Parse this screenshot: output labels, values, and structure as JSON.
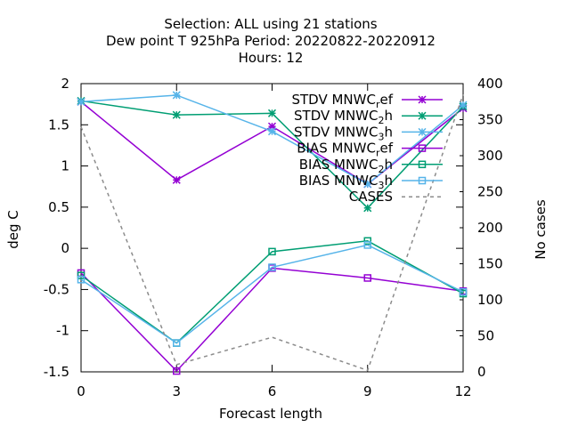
{
  "chart_data": {
    "type": "line",
    "title": [
      "Selection: ALL using    21 stations",
      "Dew point T 925hPa   Period: 20220822-20220912",
      "Hours:  12"
    ],
    "xlabel": "Forecast length",
    "ylabel": "deg C",
    "y2label": "No cases",
    "x": [
      0,
      3,
      6,
      9,
      12
    ],
    "xticks": [
      "0",
      "3",
      "6",
      "9",
      "12"
    ],
    "xlim": [
      0,
      12
    ],
    "ylim": [
      -1.5,
      2
    ],
    "yticks": [
      "-1.5",
      "-1",
      "-0.5",
      "0",
      "0.5",
      "1",
      "1.5",
      "2"
    ],
    "y2lim": [
      0,
      400
    ],
    "y2ticks": [
      "0",
      "50",
      "100",
      "150",
      "200",
      "250",
      "300",
      "350",
      "400"
    ],
    "grid": false,
    "legend_position": "top-right",
    "series": [
      {
        "name": "STDV MNWC",
        "sub": "r",
        "tail": "ef",
        "color": "#9400d3",
        "marker": "star",
        "dash": "none",
        "axis": "y1",
        "values": [
          1.78,
          0.83,
          1.48,
          0.78,
          1.7
        ]
      },
      {
        "name": "STDV MNWC",
        "sub": "2",
        "tail": "h",
        "color": "#009e73",
        "marker": "star",
        "dash": "none",
        "axis": "y1",
        "values": [
          1.79,
          1.62,
          1.64,
          0.49,
          1.72
        ]
      },
      {
        "name": "STDV MNWC",
        "sub": "3",
        "tail": "h",
        "color": "#56b4e9",
        "marker": "star",
        "dash": "none",
        "axis": "y1",
        "values": [
          1.78,
          1.86,
          1.42,
          0.78,
          1.74
        ]
      },
      {
        "name": "BIAS MNWC",
        "sub": "r",
        "tail": "ef",
        "color": "#9400d3",
        "marker": "square",
        "dash": "none",
        "axis": "y1",
        "values": [
          -0.3,
          -1.49,
          -0.24,
          -0.36,
          -0.52
        ]
      },
      {
        "name": "BIAS MNWC",
        "sub": "2",
        "tail": "h",
        "color": "#009e73",
        "marker": "square",
        "dash": "none",
        "axis": "y1",
        "values": [
          -0.33,
          -1.15,
          -0.04,
          0.09,
          -0.55
        ]
      },
      {
        "name": "BIAS MNWC",
        "sub": "3",
        "tail": "h",
        "color": "#56b4e9",
        "marker": "square",
        "dash": "none",
        "axis": "y1",
        "values": [
          -0.38,
          -1.15,
          -0.23,
          0.04,
          -0.53
        ]
      },
      {
        "name": "CASES",
        "sub": "",
        "tail": "",
        "color": "#8c8c8c",
        "marker": "none",
        "dash": "dashed",
        "axis": "y2",
        "values": [
          340,
          10,
          48,
          2,
          385
        ]
      }
    ]
  }
}
